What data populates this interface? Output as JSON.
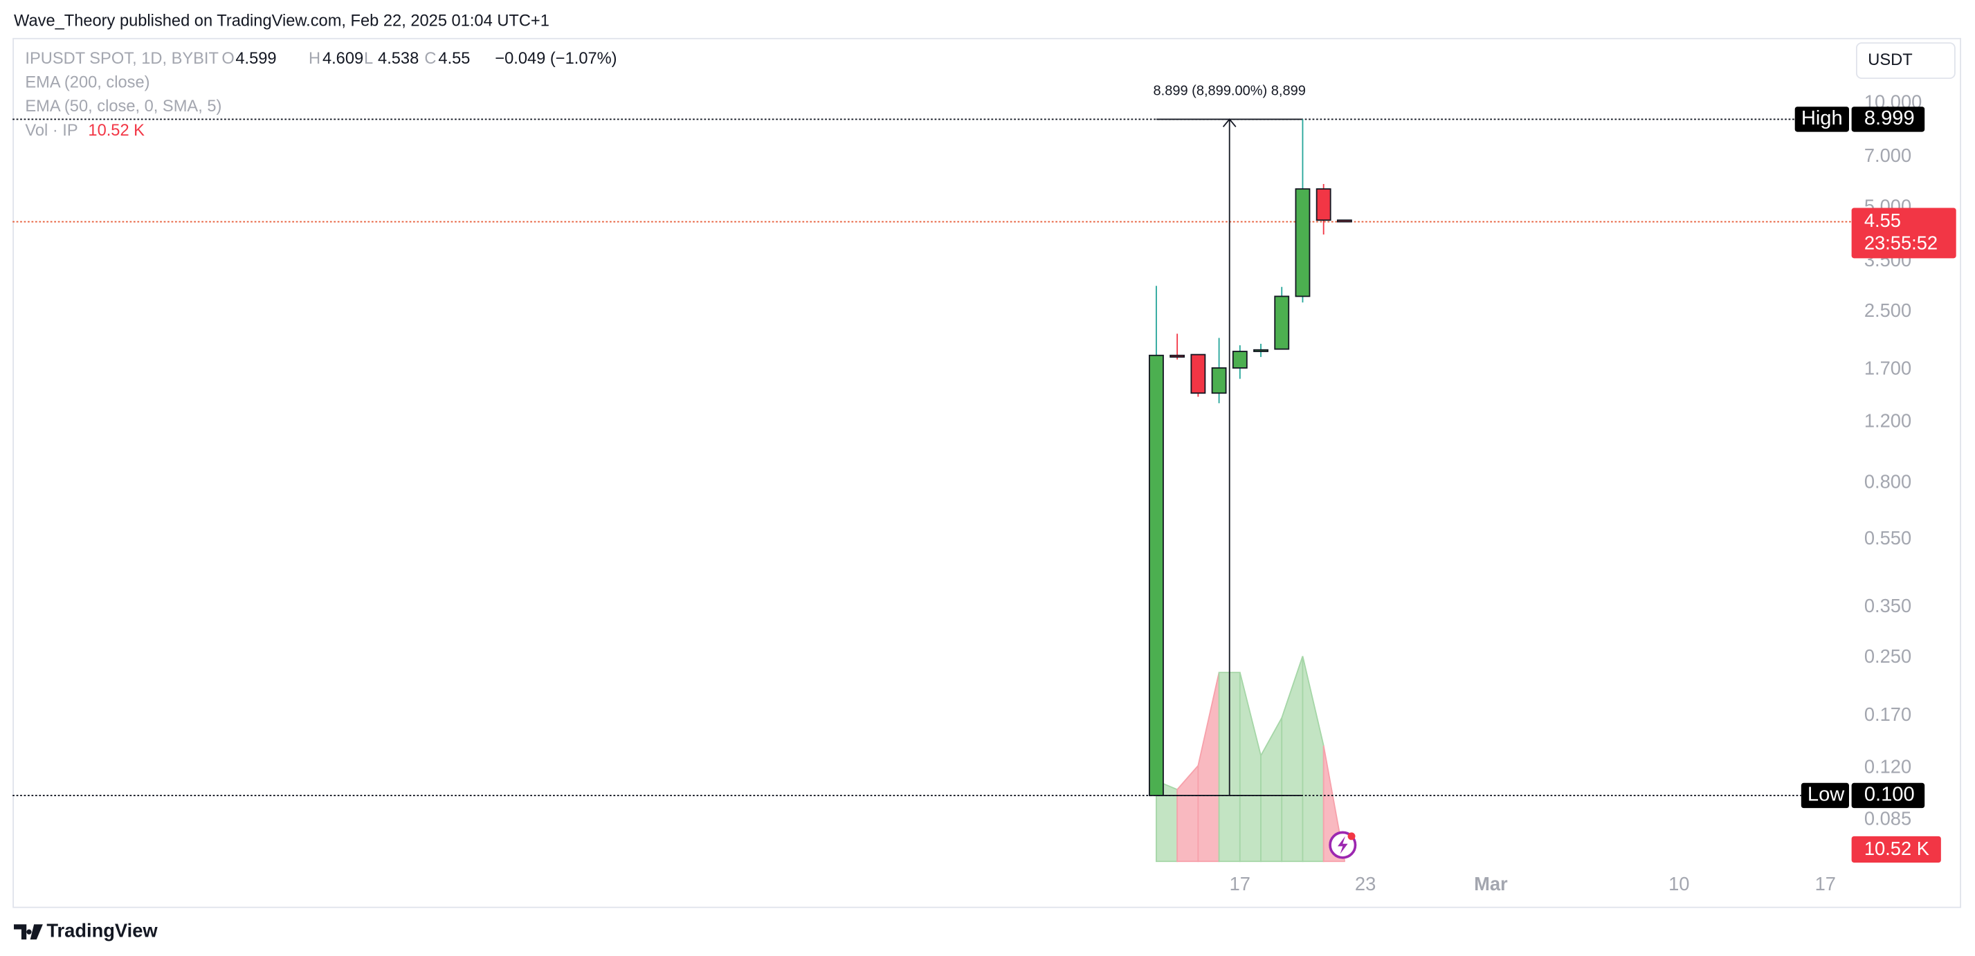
{
  "chart_data": {
    "type": "candlestick",
    "title": "Wave_Theory published on TradingView.com, Feb 22, 2025 01:04 UTC+1",
    "symbol": "IPUSDT SPOT, 1D, BYBIT",
    "ohlc_letters": [
      "O",
      "H",
      "L",
      "C"
    ],
    "change": "−0.049 (−1.07%)",
    "indicators": [
      "EMA (200, close)",
      "EMA (50, close, 0, SMA, 5)"
    ],
    "volume_name": "Vol · IP",
    "currency": "USDT",
    "brand": "TradingView",
    "x": [
      13,
      14,
      15,
      16,
      17,
      18,
      19,
      20,
      21,
      22
    ],
    "open": [
      0.1,
      1.87,
      1.88,
      1.455,
      1.72,
      1.92,
      1.95,
      2.77,
      5.66,
      4.599
    ],
    "high": [
      2.97,
      2.16,
      1.88,
      2.1,
      2.0,
      2.02,
      2.95,
      8.999,
      5.85,
      4.609
    ],
    "low": [
      0.1,
      1.82,
      1.42,
      1.36,
      1.6,
      1.85,
      1.95,
      2.66,
      4.18,
      4.538
    ],
    "close": [
      1.87,
      1.85,
      1.455,
      1.72,
      1.92,
      1.94,
      2.77,
      5.66,
      4.599,
      4.55
    ],
    "up_color": "#4caf50",
    "down_color": "#f23645",
    "volume": {
      "values": [
        707,
        630,
        840,
        1657,
        1657,
        928,
        1259,
        1800,
        1016,
        10.52
      ],
      "value_labels": [
        null,
        null,
        null,
        null,
        null,
        null,
        null,
        null,
        null,
        "10.52 K"
      ],
      "ylim": [
        0,
        1800
      ],
      "up_color": "#c3e4c3",
      "down_color": "#f9b9c0"
    },
    "log_scale": true,
    "ylim": [
      0.0477,
      15.46
    ],
    "yticks": [
      {
        "value": 10,
        "label": "10.000"
      },
      {
        "value": 7,
        "label": "7.000"
      },
      {
        "value": 5,
        "label": "5.000"
      },
      {
        "value": 3.5,
        "label": "3.500"
      },
      {
        "value": 2.5,
        "label": "2.500"
      },
      {
        "value": 1.7,
        "label": "1.700"
      },
      {
        "value": 1.2,
        "label": "1.200"
      },
      {
        "value": 0.8,
        "label": "0.800"
      },
      {
        "value": 0.55,
        "label": "0.550"
      },
      {
        "value": 0.35,
        "label": "0.350"
      },
      {
        "value": 0.25,
        "label": "0.250"
      },
      {
        "value": 0.17,
        "label": "0.170"
      },
      {
        "value": 0.12,
        "label": "0.120"
      },
      {
        "value": 0.085,
        "label": "0.085"
      }
    ],
    "xlim": [
      -41.7,
      45.95
    ],
    "xticks": [
      17,
      23,
      {
        "value": 29,
        "label": "Mar"
      },
      {
        "value": 38,
        "label": "10"
      },
      {
        "value": 45,
        "label": "17"
      }
    ],
    "high_marker": {
      "label": "High",
      "value": 8.999
    },
    "low_marker": {
      "label": "Low",
      "value": {
        "value": 0.1,
        "label": "0.100"
      }
    },
    "measure": {
      "text": "8.899 (8,899.00%) 8,899"
    },
    "countdown": "23:55:52"
  }
}
